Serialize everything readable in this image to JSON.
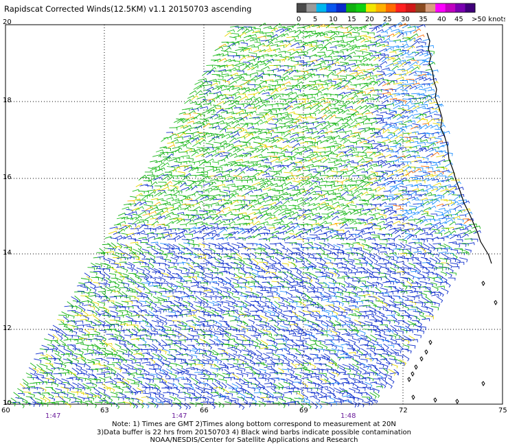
{
  "title": "Rapidscat Corrected Winds(12.5KM) v1.1 20150703 ascending",
  "legend": {
    "swatches": [
      "#4a4a4a",
      "#9a9a9a",
      "#00b7ee",
      "#0a57ee",
      "#0a2acb",
      "#10b010",
      "#10d010",
      "#f2e600",
      "#ffb000",
      "#ff6a00",
      "#ff2020",
      "#d01818",
      "#8a4a20",
      "#d8a080",
      "#ff00ff",
      "#c000c0",
      "#7a00b0",
      "#40007a"
    ],
    "labels": [
      "0",
      "5",
      "10",
      "15",
      "20",
      "25",
      "30",
      "35",
      "40",
      "45",
      ">50 knots"
    ]
  },
  "map": {
    "lat_labels": [
      "20",
      "18",
      "16",
      "14",
      "12",
      "10"
    ],
    "lon_labels": [
      "60",
      "63",
      "66",
      "69",
      "72",
      "75"
    ],
    "time_labels": [
      "1:47",
      "1:47",
      "1:48"
    ]
  },
  "notes": [
    "Note: 1) Times are GMT 2)Times along bottom correspond to measurement at 20N",
    "3)Data buffer is 22 hrs from 20150703 4) Black wind barbs indicate possible contamination",
    "NOAA/NESDIS/Center for Satellite Applications and Research"
  ]
}
